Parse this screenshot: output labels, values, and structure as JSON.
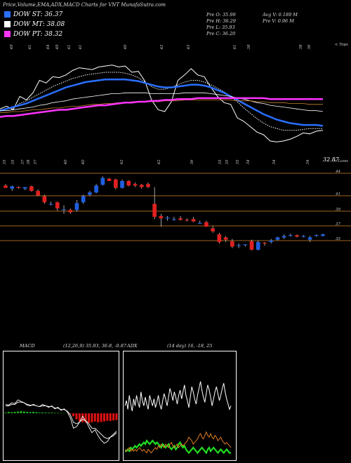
{
  "header": {
    "title": "Price,Volume,EMA,ADX,MACD Charts for VNT MunafaSutra.com"
  },
  "legend": [
    {
      "label": "DOW ST: 36.37",
      "color": "#2a6fff"
    },
    {
      "label": "DOW MT: 38.08",
      "color": "#ffffff"
    },
    {
      "label": "DOW PT: 38.32",
      "color": "#ff33ff"
    }
  ],
  "stats": {
    "prev_open": "Pre   O: 35.99",
    "prev_high": "Pre   H: 36.29",
    "prev_low": "Pre   L: 35.93",
    "prev_close": "Pre   C: 36.20",
    "avg_volume": "Avg V: 0.189 M",
    "prev_volume": "Pre   V: 0.96   M"
  },
  "chart_data": [
    {
      "type": "line",
      "name": "ema-panel",
      "top_label": "< Tops",
      "bottom_label": "< Lows",
      "last_value_label": "32.87",
      "top_ticks": [
        "49",
        "41",
        "44",
        "49",
        "41",
        "41",
        "40",
        "42",
        "43",
        "41",
        "38",
        "38",
        "36"
      ],
      "bottom_ticks": [
        "35",
        "35",
        "37",
        "38",
        "37",
        "40",
        "40",
        "42",
        "42",
        "36",
        "35",
        "35",
        "35",
        "34",
        "34",
        "34"
      ],
      "series": [
        {
          "color": "#ffffff",
          "values": [
            37.2,
            37.5,
            37.1,
            38.6,
            38.2,
            39.0,
            40.4,
            40.1,
            40.8,
            40.7,
            41.0,
            41.5,
            41.8,
            41.7,
            41.6,
            41.9,
            42.0,
            42.1,
            41.9,
            42.0,
            41.3,
            41.4,
            40.3,
            38.2,
            37.1,
            36.9,
            38.0,
            40.4,
            41.0,
            41.7,
            41.0,
            40.8,
            39.6,
            38.6,
            37.9,
            37.7,
            36.2,
            35.8,
            35.2,
            34.6,
            34.3,
            33.6,
            33.5,
            33.6,
            33.8,
            34.1,
            34.5,
            34.4,
            34.7,
            34.8
          ]
        },
        {
          "color": "#ffffff",
          "values": [
            37.0,
            37.2,
            37.3,
            37.8,
            38.1,
            38.5,
            38.9,
            39.3,
            39.7,
            40.0,
            40.3,
            40.6,
            40.8,
            41.0,
            41.1,
            41.2,
            41.3,
            41.3,
            41.3,
            41.2,
            41.0,
            40.7,
            40.2,
            39.7,
            39.4,
            39.4,
            39.6,
            39.9,
            40.2,
            40.4,
            40.4,
            40.2,
            39.9,
            39.5,
            39.1,
            38.6,
            38.0,
            37.3,
            36.7,
            36.1,
            35.6,
            35.2,
            35.0,
            34.8,
            34.8,
            34.8,
            34.9,
            35.0,
            35.0,
            35.0
          ]
        },
        {
          "color": "#2a6fff",
          "values": [
            37.0,
            37.2,
            37.4,
            37.6,
            37.8,
            38.1,
            38.4,
            38.7,
            39.0,
            39.3,
            39.6,
            39.8,
            40.0,
            40.2,
            40.3,
            40.4,
            40.5,
            40.5,
            40.5,
            40.5,
            40.4,
            40.3,
            40.1,
            39.9,
            39.7,
            39.6,
            39.6,
            39.7,
            39.8,
            39.9,
            39.9,
            39.8,
            39.6,
            39.3,
            39.0,
            38.6,
            38.2,
            37.8,
            37.4,
            37.0,
            36.6,
            36.3,
            36.0,
            35.8,
            35.6,
            35.5,
            35.4,
            35.4,
            35.4,
            35.3
          ]
        },
        {
          "color": "#ffffff",
          "values": [
            37.0,
            37.0,
            37.1,
            37.2,
            37.3,
            37.4,
            37.6,
            37.7,
            37.9,
            38.0,
            38.1,
            38.3,
            38.4,
            38.5,
            38.6,
            38.7,
            38.8,
            38.9,
            38.9,
            39.0,
            39.0,
            39.0,
            39.0,
            38.9,
            38.9,
            38.9,
            38.9,
            38.9,
            39.0,
            39.0,
            39.0,
            39.0,
            38.9,
            38.8,
            38.7,
            38.6,
            38.4,
            38.3,
            38.1,
            37.9,
            37.8,
            37.6,
            37.5,
            37.4,
            37.3,
            37.2,
            37.1,
            37.0,
            37.0,
            36.9
          ]
        },
        {
          "color": "#c8822a",
          "values": [
            36.8,
            36.8,
            36.9,
            36.9,
            37.0,
            37.1,
            37.1,
            37.2,
            37.3,
            37.3,
            37.4,
            37.5,
            37.5,
            37.6,
            37.7,
            37.7,
            37.8,
            37.8,
            37.9,
            37.9,
            38.0,
            38.0,
            38.0,
            38.0,
            38.0,
            38.1,
            38.1,
            38.1,
            38.2,
            38.2,
            38.2,
            38.2,
            38.2,
            38.2,
            38.2,
            38.2,
            38.1,
            38.1,
            38.1,
            38.0,
            38.0,
            37.9,
            37.9,
            37.9,
            37.8,
            37.8,
            37.8,
            37.7,
            37.7,
            37.7
          ]
        },
        {
          "color": "#ff33ff",
          "values": [
            36.3,
            36.4,
            36.4,
            36.5,
            36.6,
            36.7,
            36.8,
            36.9,
            37.0,
            37.1,
            37.1,
            37.2,
            37.3,
            37.4,
            37.5,
            37.6,
            37.6,
            37.7,
            37.8,
            37.9,
            37.9,
            38.0,
            38.0,
            38.1,
            38.1,
            38.2,
            38.2,
            38.3,
            38.3,
            38.3,
            38.4,
            38.4,
            38.4,
            38.4,
            38.4,
            38.4,
            38.4,
            38.4,
            38.4,
            38.4,
            38.4,
            38.3,
            38.3,
            38.3,
            38.3,
            38.3,
            38.3,
            38.3,
            38.3,
            38.3
          ]
        }
      ]
    },
    {
      "type": "candlestick",
      "name": "price-panel",
      "levels": [
        {
          "value": 44,
          "label": "44"
        },
        {
          "value": 41,
          "label": "41"
        },
        {
          "value": 39,
          "label": "39"
        },
        {
          "value": 37,
          "label": "37"
        },
        {
          "value": 35,
          "label": "35"
        }
      ],
      "ohlc": [
        [
          42.6,
          42.8,
          42.3,
          42.3
        ],
        [
          42.2,
          42.6,
          41.9,
          42.5
        ],
        [
          42.4,
          42.5,
          42.2,
          42.3
        ],
        [
          42.2,
          42.4,
          42.0,
          42.4
        ],
        [
          42.5,
          42.6,
          41.8,
          41.9
        ],
        [
          41.9,
          42.1,
          41.2,
          41.3
        ],
        [
          41.2,
          41.4,
          40.2,
          40.4
        ],
        [
          40.2,
          40.5,
          40.0,
          40.2
        ],
        [
          40.4,
          40.5,
          39.3,
          39.6
        ],
        [
          39.4,
          40.0,
          38.9,
          39.5
        ],
        [
          39.4,
          39.6,
          38.9,
          39.1
        ],
        [
          39.4,
          40.7,
          39.2,
          40.3
        ],
        [
          40.4,
          41.4,
          40.2,
          41.2
        ],
        [
          41.4,
          41.9,
          41.2,
          41.7
        ],
        [
          41.7,
          42.8,
          41.6,
          42.6
        ],
        [
          42.7,
          43.8,
          42.6,
          43.6
        ],
        [
          43.5,
          43.6,
          43.2,
          43.2
        ],
        [
          43.4,
          43.5,
          42.1,
          42.3
        ],
        [
          42.3,
          43.4,
          42.2,
          43.2
        ],
        [
          43.2,
          43.3,
          42.5,
          42.6
        ],
        [
          42.8,
          43.0,
          42.4,
          42.6
        ],
        [
          42.7,
          42.8,
          42.2,
          42.4
        ],
        [
          42.8,
          43.0,
          42.3,
          42.4
        ],
        [
          40.2,
          42.4,
          38.2,
          38.5
        ],
        [
          38.6,
          38.9,
          37.2,
          38.3
        ],
        [
          38.3,
          38.6,
          38.0,
          38.4
        ],
        [
          38.2,
          38.5,
          38.0,
          38.2
        ],
        [
          38.3,
          38.6,
          38.0,
          38.1
        ],
        [
          38.1,
          38.3,
          37.9,
          38.0
        ],
        [
          38.2,
          38.5,
          37.8,
          37.9
        ],
        [
          37.6,
          38.0,
          37.6,
          37.7
        ],
        [
          37.8,
          38.0,
          37.2,
          37.2
        ],
        [
          37.0,
          37.3,
          36.4,
          36.6
        ],
        [
          36.2,
          36.4,
          35.0,
          35.2
        ],
        [
          35.8,
          36.0,
          35.2,
          35.5
        ],
        [
          35.3,
          35.6,
          34.4,
          34.6
        ],
        [
          34.7,
          35.0,
          34.4,
          34.8
        ],
        [
          34.8,
          34.9,
          34.6,
          34.9
        ],
        [
          35.3,
          35.5,
          34.1,
          34.2
        ],
        [
          34.2,
          35.4,
          34.1,
          35.2
        ],
        [
          35.1,
          35.2,
          34.7,
          35.0
        ],
        [
          35.2,
          35.6,
          35.0,
          35.4
        ],
        [
          35.5,
          35.9,
          35.4,
          35.8
        ],
        [
          35.8,
          36.2,
          35.6,
          36.0
        ],
        [
          36.0,
          36.3,
          35.9,
          36.1
        ],
        [
          36.1,
          36.2,
          35.8,
          35.9
        ],
        [
          35.9,
          36.1,
          35.8,
          36.0
        ],
        [
          35.5,
          36.0,
          35.2,
          35.8
        ],
        [
          36.0,
          36.2,
          35.9,
          36.1
        ],
        [
          35.99,
          36.29,
          35.93,
          36.2
        ]
      ]
    },
    {
      "type": "line",
      "name": "macd-panel",
      "label": "MACD",
      "values_label": "(12,26,9) 35.93, 36.8, -0.87",
      "ylim": [
        -3,
        4
      ],
      "histogram": [
        0.05,
        0.1,
        0.08,
        0.1,
        0.12,
        0.15,
        0.12,
        0.1,
        0.08,
        0.1,
        0.08,
        0.05,
        0.06,
        0.05,
        0.04,
        0.05,
        0.03,
        0.03,
        0.02,
        0.02,
        0.01,
        -0.05,
        -0.2,
        -0.4,
        -0.55,
        -0.6,
        -0.62,
        -0.65,
        -0.6,
        -0.55,
        -0.6,
        -0.58,
        -0.55,
        -0.5,
        -0.52,
        -0.48,
        -0.45
      ],
      "series": [
        {
          "color": "#ffffff",
          "values": [
            0.6,
            0.55,
            0.7,
            0.65,
            0.9,
            0.8,
            0.7,
            0.55,
            0.5,
            0.6,
            0.5,
            0.45,
            0.6,
            0.5,
            0.4,
            0.5,
            0.3,
            0.4,
            0.2,
            0.3,
            0.1,
            -0.3,
            -1.0,
            -0.9,
            -0.6,
            -0.2,
            -0.5,
            -0.9,
            -1.3,
            -1.1,
            -1.5,
            -1.8,
            -2.0,
            -1.9,
            -1.6,
            -1.4,
            -1.2
          ]
        },
        {
          "color": "#ffffff",
          "values": [
            0.5,
            0.5,
            0.6,
            0.6,
            0.75,
            0.75,
            0.7,
            0.6,
            0.55,
            0.55,
            0.5,
            0.45,
            0.5,
            0.5,
            0.45,
            0.45,
            0.35,
            0.35,
            0.25,
            0.25,
            0.15,
            -0.1,
            -0.6,
            -0.7,
            -0.6,
            -0.4,
            -0.5,
            -0.7,
            -1.0,
            -1.0,
            -1.2,
            -1.4,
            -1.6,
            -1.7,
            -1.6,
            -1.5,
            -1.3
          ]
        }
      ]
    },
    {
      "type": "line",
      "name": "adx-panel",
      "label": "ADX",
      "values_label": "(14 day) 16, -18, 25",
      "ylim": [
        0,
        60
      ],
      "series": [
        {
          "color": "#ffffff",
          "values": [
            30,
            33,
            28,
            36,
            31,
            27,
            34,
            30,
            36,
            32,
            29,
            38,
            33,
            30,
            35,
            31,
            28,
            36,
            33,
            30,
            34,
            29,
            32,
            36,
            31,
            28,
            33,
            37,
            34,
            30,
            35,
            40,
            37,
            33,
            38,
            35,
            31,
            36,
            39,
            34,
            38,
            42,
            36,
            33,
            29,
            35,
            41,
            38,
            34,
            31,
            36,
            40,
            44,
            39,
            35,
            32,
            37,
            42,
            39,
            35,
            30,
            34,
            38,
            41,
            37,
            33,
            36,
            40,
            43,
            38,
            34,
            31,
            28,
            30
          ]
        },
        {
          "color": "#22dd22",
          "values": [
            4,
            4,
            5,
            4,
            6,
            5,
            6,
            7,
            6,
            7,
            8,
            7,
            8,
            9,
            8,
            10,
            9,
            8,
            9,
            10,
            9,
            8,
            9,
            8,
            7,
            6,
            8,
            7,
            6,
            7,
            8,
            6,
            5,
            6,
            7,
            5,
            6,
            8,
            9,
            7,
            6,
            7,
            5,
            4,
            3,
            4,
            5,
            6,
            5,
            4,
            3,
            4,
            5,
            6,
            5,
            4,
            3,
            5,
            6,
            4,
            5,
            6,
            5,
            4,
            3,
            4,
            5,
            4,
            3,
            4,
            5,
            4,
            3,
            3
          ]
        },
        {
          "color": "#e07b20",
          "values": [
            5,
            4,
            5,
            6,
            4,
            5,
            4,
            5,
            4,
            5,
            6,
            5,
            4,
            5,
            4,
            3,
            5,
            4,
            3,
            4,
            5,
            6,
            5,
            7,
            6,
            8,
            7,
            6,
            8,
            7,
            6,
            8,
            9,
            7,
            6,
            7,
            8,
            6,
            7,
            8,
            7,
            8,
            9,
            10,
            12,
            11,
            10,
            8,
            9,
            10,
            11,
            13,
            14,
            12,
            11,
            13,
            15,
            13,
            12,
            14,
            12,
            11,
            13,
            12,
            10,
            11,
            12,
            10,
            9,
            8,
            9,
            8,
            7,
            6
          ]
        }
      ]
    }
  ]
}
